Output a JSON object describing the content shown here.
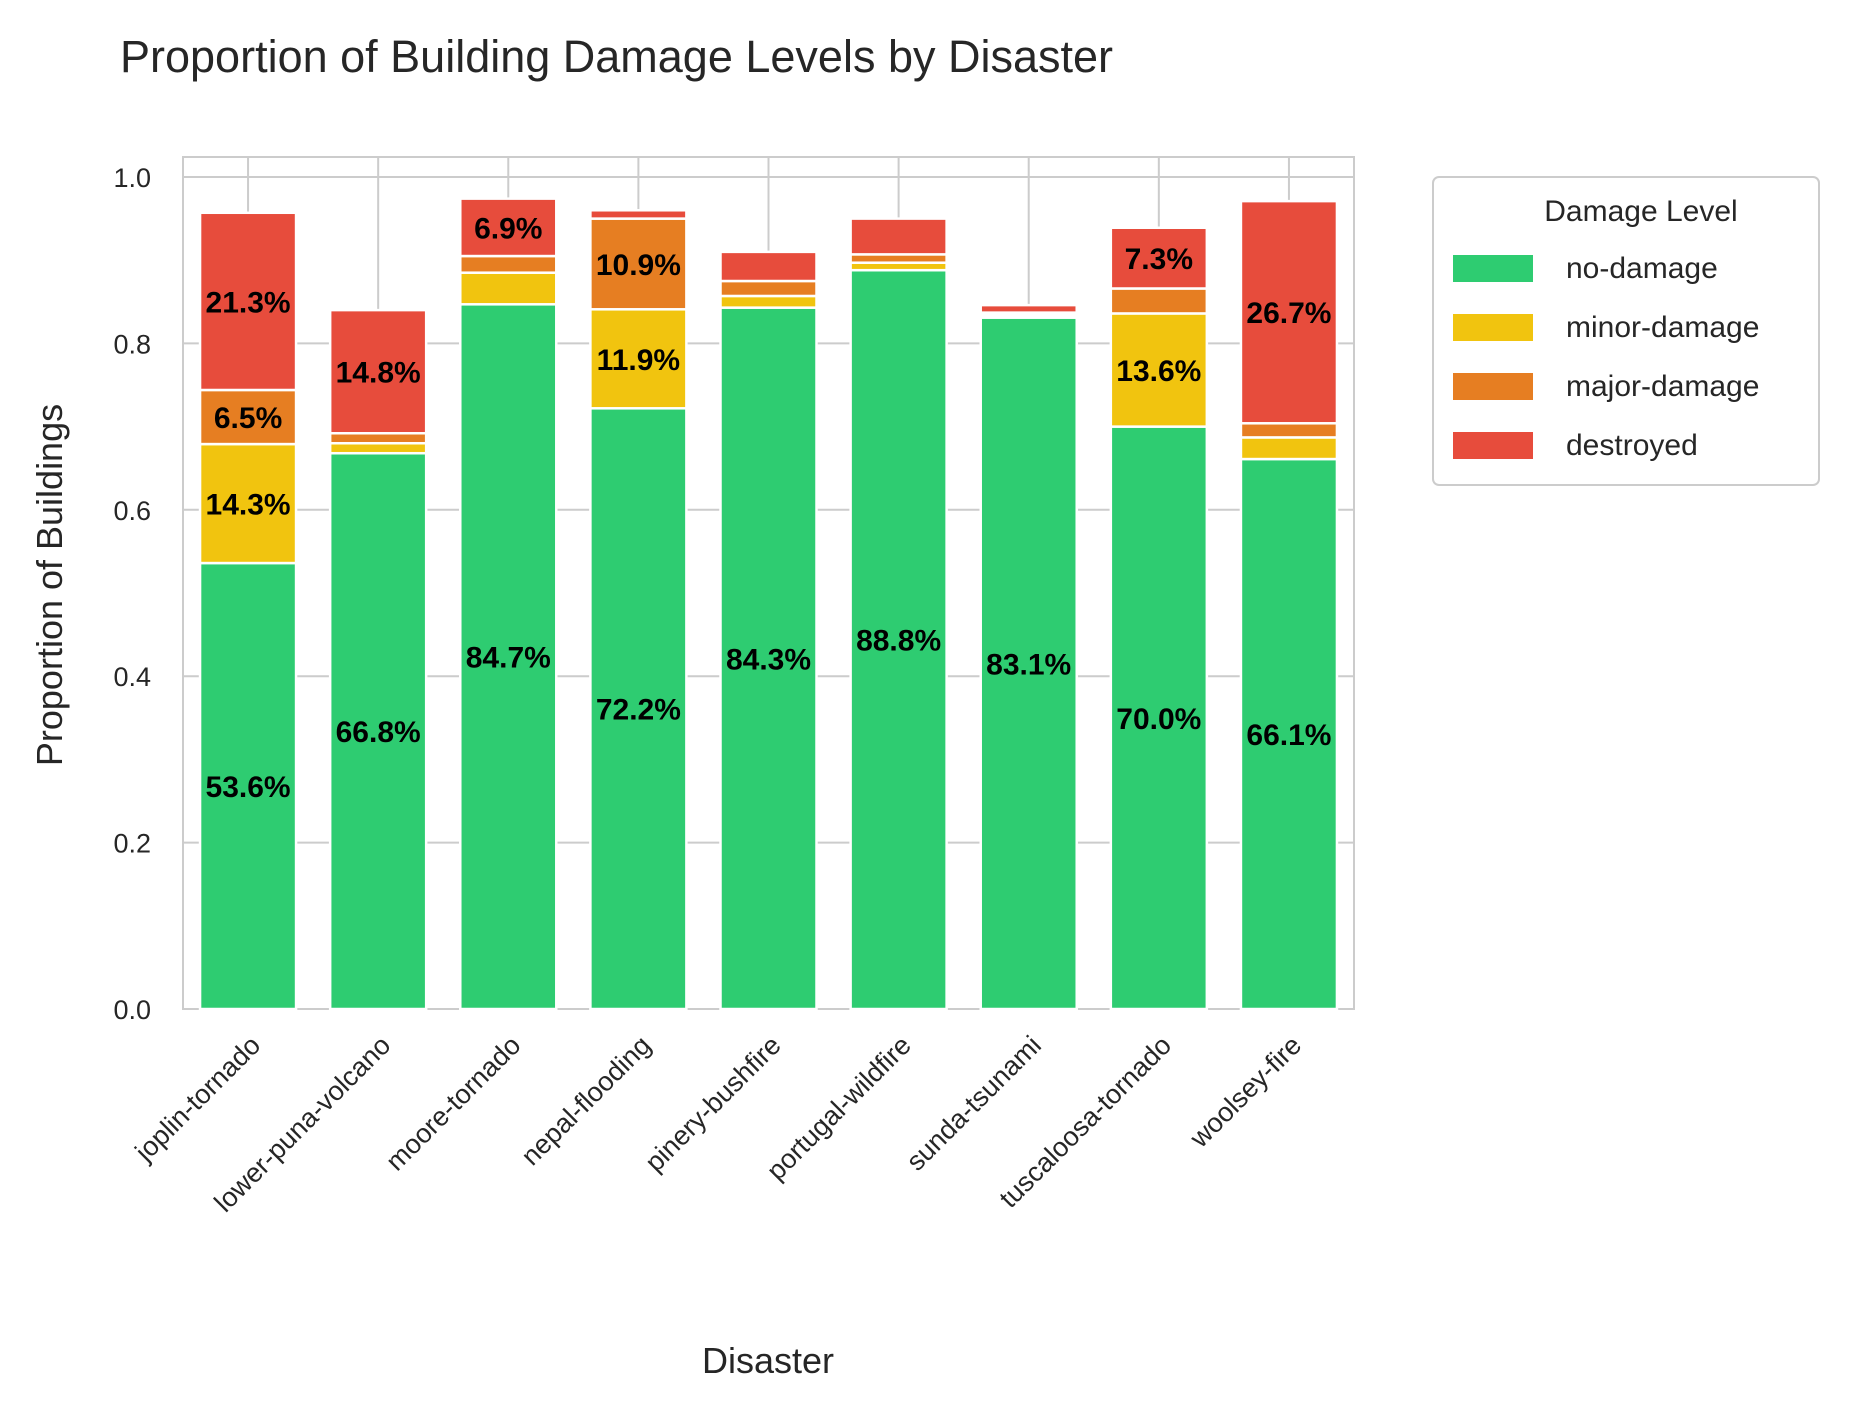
{
  "chart_data": {
    "type": "bar",
    "stacked": true,
    "title": "Proportion of Building Damage Levels by Disaster",
    "xlabel": "Disaster",
    "ylabel": "Proportion of Buildings",
    "ylim": [
      0,
      1.0
    ],
    "yticks": [
      "0.0",
      "0.2",
      "0.4",
      "0.6",
      "0.8",
      "1.0"
    ],
    "grid": true,
    "legend_title": "Damage Level",
    "legend_position": "outside-top-right",
    "categories": [
      "joplin-tornado",
      "lower-puna-volcano",
      "moore-tornado",
      "nepal-flooding",
      "pinery-bushfire",
      "portugal-wildfire",
      "sunda-tsunami",
      "tuscaloosa-tornado",
      "woolsey-fire"
    ],
    "series": [
      {
        "name": "no-damage",
        "color": "#2ecc71",
        "values": [
          0.536,
          0.668,
          0.847,
          0.722,
          0.843,
          0.888,
          0.831,
          0.7,
          0.661
        ],
        "labels": [
          "53.6%",
          "66.8%",
          "84.7%",
          "72.2%",
          "84.3%",
          "88.8%",
          "83.1%",
          "70.0%",
          "66.1%"
        ]
      },
      {
        "name": "minor-damage",
        "color": "#f1c40f",
        "values": [
          0.143,
          0.012,
          0.038,
          0.119,
          0.014,
          0.009,
          0.003,
          0.136,
          0.026
        ],
        "labels": [
          "14.3%",
          "",
          "",
          "11.9%",
          "",
          "",
          "",
          "13.6%",
          ""
        ]
      },
      {
        "name": "major-damage",
        "color": "#e67e22",
        "values": [
          0.065,
          0.012,
          0.02,
          0.109,
          0.018,
          0.01,
          0.003,
          0.03,
          0.017
        ],
        "labels": [
          "6.5%",
          "",
          "",
          "10.9%",
          "",
          "",
          "",
          "",
          ""
        ]
      },
      {
        "name": "destroyed",
        "color": "#e74c3c",
        "values": [
          0.213,
          0.148,
          0.069,
          0.01,
          0.035,
          0.043,
          0.009,
          0.073,
          0.267
        ],
        "labels": [
          "21.3%",
          "14.8%",
          "6.9%",
          "",
          "",
          "",
          "",
          "7.3%",
          "26.7%"
        ]
      }
    ]
  }
}
